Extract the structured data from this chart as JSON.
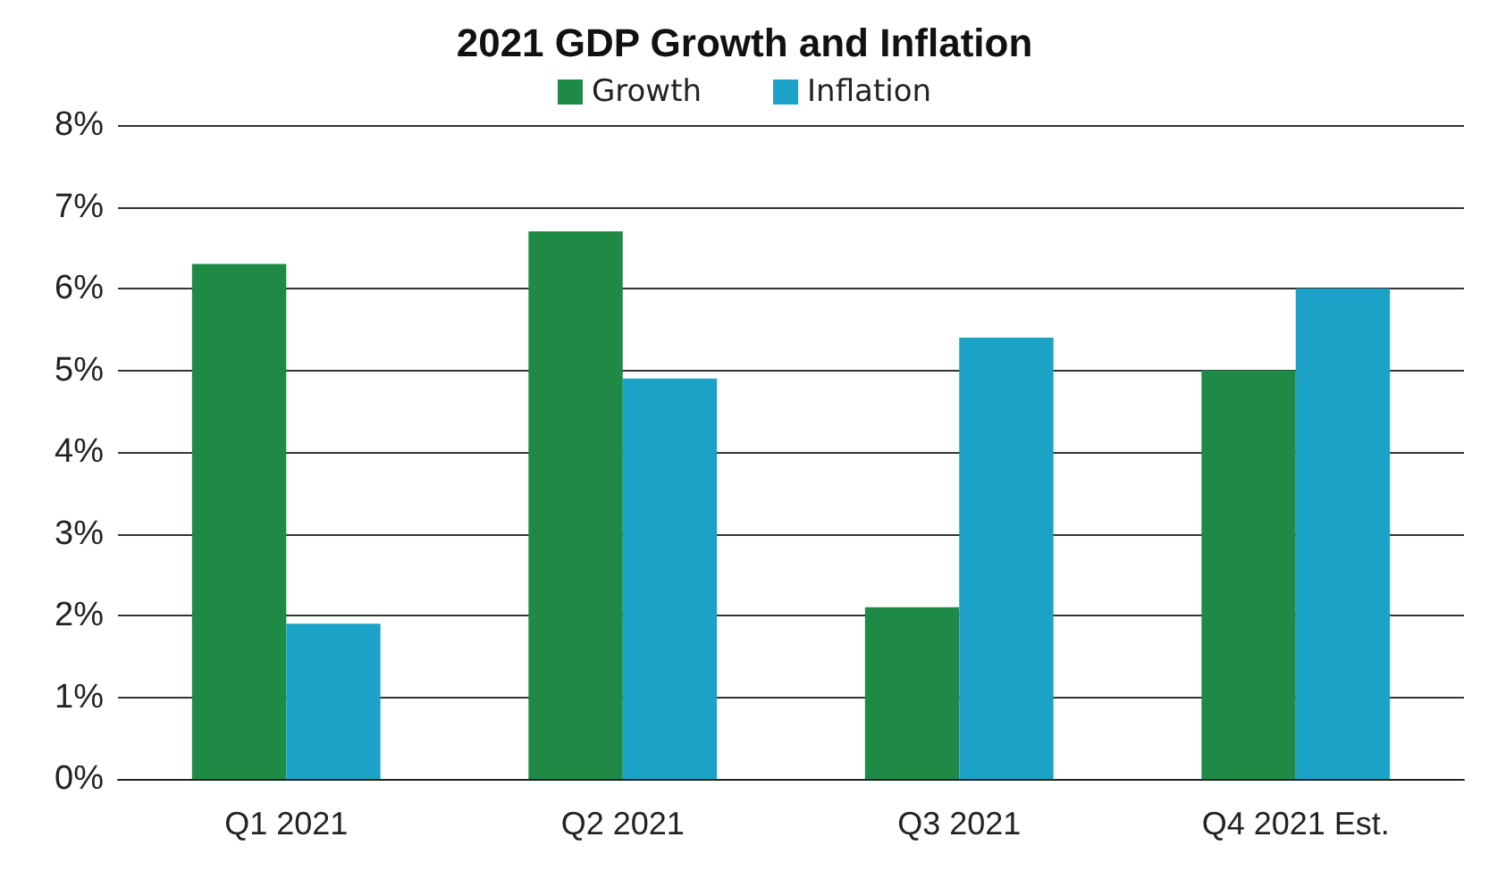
{
  "chart_data": {
    "type": "bar",
    "title": "2021 GDP Growth and Inflation",
    "categories": [
      "Q1 2021",
      "Q2 2021",
      "Q3 2021",
      "Q4 2021 Est."
    ],
    "series": [
      {
        "name": "Growth",
        "color": "#1f8a45",
        "values": [
          6.3,
          6.7,
          2.1,
          5.0
        ]
      },
      {
        "name": "Inflation",
        "color": "#1ca2c6",
        "values": [
          1.9,
          4.9,
          5.4,
          6.0
        ]
      }
    ],
    "ylim": [
      0,
      8
    ],
    "yticks": [
      {
        "value": 0,
        "label": "0%"
      },
      {
        "value": 1,
        "label": "1%"
      },
      {
        "value": 2,
        "label": "2%"
      },
      {
        "value": 3,
        "label": "3%"
      },
      {
        "value": 4,
        "label": "4%"
      },
      {
        "value": 5,
        "label": "5%"
      },
      {
        "value": 6,
        "label": "6%"
      },
      {
        "value": 7,
        "label": "7%"
      },
      {
        "value": 8,
        "label": "8%"
      }
    ],
    "grid": "y",
    "legend": "top"
  }
}
